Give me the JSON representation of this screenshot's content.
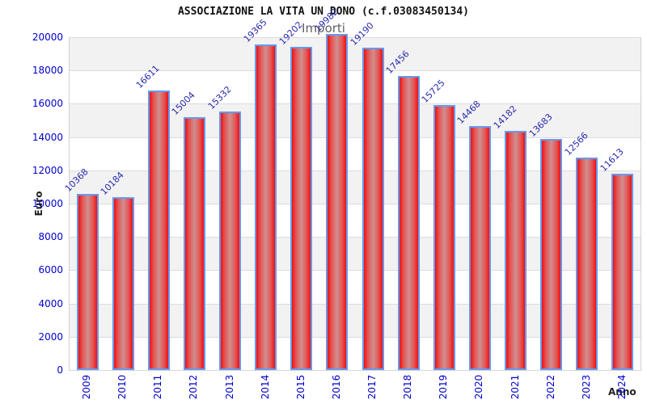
{
  "chart_data": {
    "type": "bar",
    "title": "ASSOCIAZIONE LA VITA UN DONO (c.f.03083450134)",
    "subtitle": "Importi",
    "xlabel": "Anno",
    "ylabel": "Euro",
    "categories": [
      "2009",
      "2010",
      "2011",
      "2012",
      "2013",
      "2014",
      "2015",
      "2016",
      "2017",
      "2018",
      "2019",
      "2020",
      "2021",
      "2022",
      "2023",
      "2024"
    ],
    "values": [
      10368,
      10184,
      16611,
      15004,
      15332,
      19365,
      19202,
      19982,
      19190,
      17456,
      15725,
      14468,
      14182,
      13683,
      12566,
      11613
    ],
    "ylim": [
      0,
      20000
    ],
    "ytick_step": 2000,
    "yticks": [
      0,
      2000,
      4000,
      6000,
      8000,
      10000,
      12000,
      14000,
      16000,
      18000,
      20000
    ],
    "grid": "horizontal-bands",
    "legend": "none",
    "colors": {
      "bar_edge_red": "#ee1111",
      "bar_center": "#cf8f8f",
      "bar_border": "#6699ee",
      "tick_label": "#0000cc",
      "value_label": "#2a2aad",
      "band_gray": "#f2f2f2",
      "band_white": "#ffffff",
      "gridline": "#dcdcdc",
      "title": "#111111",
      "subtitle": "#606060",
      "axis_title": "#222222"
    }
  }
}
